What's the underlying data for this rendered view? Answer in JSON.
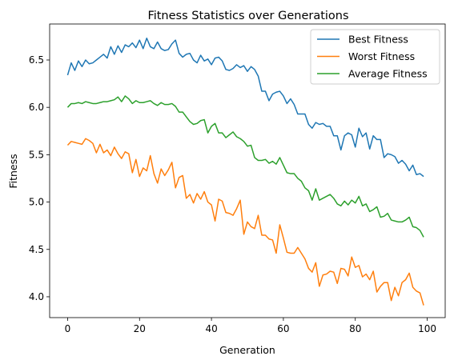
{
  "chart_data": {
    "type": "line",
    "title": "Fitness Statistics over Generations",
    "xlabel": "Generation",
    "ylabel": "Fitness",
    "xlim": [
      -5,
      105
    ],
    "ylim": [
      3.78,
      6.88
    ],
    "x_ticks": [
      0,
      20,
      40,
      60,
      80,
      100
    ],
    "y_ticks": [
      4.0,
      4.5,
      5.0,
      5.5,
      6.0,
      6.5
    ],
    "grid": false,
    "legend_position": "top-right",
    "series": [
      {
        "name": "Best Fitness",
        "color": "#1f77b4",
        "values": [
          6.34,
          6.47,
          6.39,
          6.49,
          6.43,
          6.5,
          6.46,
          6.47,
          6.5,
          6.53,
          6.56,
          6.52,
          6.64,
          6.56,
          6.65,
          6.58,
          6.66,
          6.64,
          6.68,
          6.63,
          6.71,
          6.62,
          6.73,
          6.64,
          6.62,
          6.69,
          6.62,
          6.6,
          6.61,
          6.67,
          6.71,
          6.57,
          6.53,
          6.56,
          6.57,
          6.5,
          6.47,
          6.55,
          6.49,
          6.51,
          6.45,
          6.52,
          6.53,
          6.49,
          6.4,
          6.39,
          6.41,
          6.45,
          6.42,
          6.44,
          6.38,
          6.43,
          6.4,
          6.33,
          6.17,
          6.17,
          6.07,
          6.14,
          6.16,
          6.17,
          6.12,
          6.04,
          6.09,
          6.03,
          5.93,
          5.93,
          5.93,
          5.82,
          5.78,
          5.84,
          5.82,
          5.83,
          5.8,
          5.8,
          5.7,
          5.7,
          5.55,
          5.7,
          5.73,
          5.71,
          5.58,
          5.78,
          5.69,
          5.73,
          5.56,
          5.7,
          5.66,
          5.66,
          5.47,
          5.51,
          5.5,
          5.48,
          5.41,
          5.44,
          5.4,
          5.33,
          5.39,
          5.29,
          5.3,
          5.27
        ]
      },
      {
        "name": "Worst Fitness",
        "color": "#ff7f0e",
        "values": [
          5.6,
          5.64,
          5.63,
          5.62,
          5.61,
          5.67,
          5.65,
          5.62,
          5.52,
          5.61,
          5.52,
          5.55,
          5.49,
          5.58,
          5.51,
          5.46,
          5.53,
          5.51,
          5.31,
          5.45,
          5.27,
          5.36,
          5.33,
          5.49,
          5.3,
          5.2,
          5.35,
          5.28,
          5.34,
          5.42,
          5.15,
          5.26,
          5.28,
          5.04,
          5.08,
          4.99,
          5.09,
          5.03,
          5.11,
          5.0,
          4.97,
          4.8,
          5.03,
          5.01,
          4.89,
          4.88,
          4.86,
          4.93,
          5.02,
          4.66,
          4.79,
          4.74,
          4.72,
          4.86,
          4.65,
          4.65,
          4.61,
          4.6,
          4.46,
          4.76,
          4.62,
          4.47,
          4.46,
          4.46,
          4.52,
          4.46,
          4.4,
          4.3,
          4.26,
          4.36,
          4.11,
          4.23,
          4.24,
          4.27,
          4.26,
          4.14,
          4.3,
          4.29,
          4.22,
          4.42,
          4.31,
          4.33,
          4.21,
          4.24,
          4.18,
          4.27,
          4.05,
          4.11,
          4.15,
          4.15,
          3.96,
          4.1,
          4.01,
          4.15,
          4.18,
          4.25,
          4.1,
          4.06,
          4.04,
          3.91
        ]
      },
      {
        "name": "Average Fitness",
        "color": "#2ca02c",
        "values": [
          6.0,
          6.04,
          6.04,
          6.05,
          6.04,
          6.06,
          6.05,
          6.04,
          6.04,
          6.05,
          6.06,
          6.06,
          6.07,
          6.08,
          6.11,
          6.06,
          6.12,
          6.09,
          6.04,
          6.07,
          6.05,
          6.05,
          6.06,
          6.07,
          6.04,
          6.02,
          6.05,
          6.03,
          6.03,
          6.04,
          6.01,
          5.95,
          5.95,
          5.9,
          5.85,
          5.82,
          5.83,
          5.86,
          5.87,
          5.73,
          5.8,
          5.83,
          5.73,
          5.73,
          5.68,
          5.71,
          5.74,
          5.69,
          5.67,
          5.64,
          5.59,
          5.6,
          5.47,
          5.44,
          5.44,
          5.45,
          5.41,
          5.43,
          5.4,
          5.47,
          5.39,
          5.31,
          5.3,
          5.3,
          5.25,
          5.22,
          5.15,
          5.12,
          5.02,
          5.14,
          5.02,
          5.04,
          5.06,
          5.08,
          5.04,
          4.98,
          4.96,
          5.01,
          4.97,
          5.02,
          4.99,
          5.06,
          4.96,
          4.98,
          4.9,
          4.92,
          4.95,
          4.84,
          4.85,
          4.88,
          4.81,
          4.8,
          4.79,
          4.79,
          4.81,
          4.84,
          4.74,
          4.73,
          4.7,
          4.63
        ]
      }
    ]
  }
}
